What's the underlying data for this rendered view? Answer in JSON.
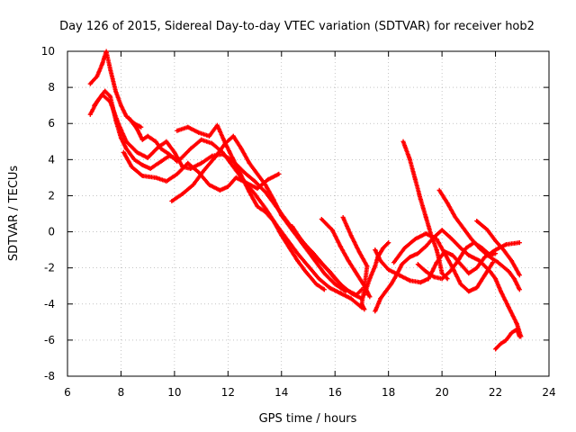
{
  "chart_data": {
    "type": "scatter",
    "title": "Day 126 of 2015, Sidereal Day-to-day VTEC variation (SDTVAR) for receiver hob2",
    "xlabel": "GPS time / hours",
    "ylabel": "SDTVAR / TECUs",
    "xlim": [
      6,
      24
    ],
    "ylim": [
      -8,
      10
    ],
    "xticks": [
      "6",
      "8",
      "10",
      "12",
      "14",
      "16",
      "18",
      "20",
      "22",
      "24"
    ],
    "yticks": [
      "10",
      "8",
      "6",
      "4",
      "2",
      "0",
      "-2",
      "-4",
      "-6",
      "-8"
    ],
    "grid": true,
    "marker": "+",
    "color": "#ff0000",
    "series": [
      {
        "name": "trace-a",
        "points": [
          [
            6.85,
            8.2
          ],
          [
            7.1,
            8.6
          ],
          [
            7.3,
            9.3
          ],
          [
            7.45,
            10.0
          ],
          [
            7.6,
            9.0
          ],
          [
            7.8,
            7.8
          ],
          [
            8.0,
            7.0
          ],
          [
            8.2,
            6.4
          ],
          [
            8.5,
            6.0
          ],
          [
            8.75,
            5.8
          ]
        ]
      },
      {
        "name": "trace-b",
        "points": [
          [
            6.85,
            6.5
          ],
          [
            7.1,
            7.2
          ],
          [
            7.4,
            7.8
          ],
          [
            7.6,
            7.5
          ],
          [
            7.8,
            6.2
          ],
          [
            8.0,
            5.2
          ],
          [
            8.2,
            4.6
          ],
          [
            8.5,
            4.0
          ],
          [
            8.8,
            3.7
          ],
          [
            9.1,
            3.5
          ],
          [
            9.5,
            3.9
          ],
          [
            9.8,
            4.2
          ],
          [
            10.2,
            4.0
          ],
          [
            10.6,
            4.6
          ],
          [
            11.0,
            5.1
          ],
          [
            11.4,
            4.9
          ],
          [
            11.8,
            4.4
          ],
          [
            12.2,
            3.6
          ],
          [
            12.6,
            2.8
          ],
          [
            13.0,
            2.1
          ],
          [
            13.4,
            1.3
          ],
          [
            13.8,
            0.4
          ],
          [
            14.2,
            -0.4
          ],
          [
            14.6,
            -1.2
          ],
          [
            15.0,
            -1.9
          ],
          [
            15.4,
            -2.6
          ],
          [
            15.8,
            -3.1
          ],
          [
            16.2,
            -3.4
          ],
          [
            16.6,
            -3.7
          ],
          [
            17.0,
            -4.2
          ]
        ]
      },
      {
        "name": "trace-c",
        "points": [
          [
            7.0,
            7.0
          ],
          [
            7.3,
            7.6
          ],
          [
            7.6,
            7.2
          ],
          [
            7.9,
            6.0
          ],
          [
            8.2,
            5.0
          ],
          [
            8.6,
            4.4
          ],
          [
            9.0,
            4.1
          ],
          [
            9.4,
            4.7
          ],
          [
            9.7,
            5.0
          ],
          [
            10.0,
            4.4
          ],
          [
            10.3,
            3.6
          ],
          [
            10.6,
            3.5
          ],
          [
            11.0,
            3.8
          ],
          [
            11.4,
            4.2
          ],
          [
            11.8,
            4.3
          ],
          [
            12.2,
            3.9
          ],
          [
            12.6,
            3.3
          ],
          [
            13.0,
            2.8
          ],
          [
            13.4,
            2.2
          ],
          [
            13.8,
            1.4
          ],
          [
            14.2,
            0.6
          ],
          [
            14.6,
            -0.2
          ],
          [
            15.0,
            -0.9
          ],
          [
            15.4,
            -1.6
          ],
          [
            15.8,
            -2.2
          ],
          [
            16.2,
            -2.9
          ],
          [
            16.6,
            -3.4
          ],
          [
            17.0,
            -3.7
          ]
        ]
      },
      {
        "name": "trace-d",
        "points": [
          [
            8.1,
            4.4
          ],
          [
            8.4,
            3.6
          ],
          [
            8.8,
            3.1
          ],
          [
            9.3,
            3.0
          ],
          [
            9.7,
            2.8
          ],
          [
            10.1,
            3.2
          ],
          [
            10.5,
            3.8
          ],
          [
            10.9,
            3.3
          ],
          [
            11.3,
            2.6
          ],
          [
            11.7,
            2.3
          ],
          [
            12.0,
            2.5
          ],
          [
            12.3,
            3.0
          ],
          [
            12.7,
            2.7
          ],
          [
            13.1,
            2.4
          ],
          [
            13.5,
            2.9
          ],
          [
            13.9,
            3.2
          ]
        ]
      },
      {
        "name": "trace-e",
        "points": [
          [
            9.9,
            1.7
          ],
          [
            10.3,
            2.1
          ],
          [
            10.7,
            2.6
          ],
          [
            11.1,
            3.4
          ],
          [
            11.5,
            4.1
          ],
          [
            11.9,
            4.9
          ],
          [
            12.2,
            5.3
          ],
          [
            12.5,
            4.6
          ],
          [
            12.8,
            3.8
          ],
          [
            13.1,
            3.2
          ],
          [
            13.4,
            2.6
          ],
          [
            13.7,
            1.8
          ],
          [
            14.0,
            0.9
          ],
          [
            14.4,
            0.1
          ],
          [
            14.8,
            -0.7
          ],
          [
            15.2,
            -1.5
          ],
          [
            15.6,
            -2.3
          ],
          [
            16.0,
            -2.9
          ],
          [
            16.4,
            -3.3
          ]
        ]
      },
      {
        "name": "trace-f",
        "points": [
          [
            10.1,
            5.6
          ],
          [
            10.5,
            5.8
          ],
          [
            10.9,
            5.5
          ],
          [
            11.3,
            5.3
          ],
          [
            11.6,
            5.9
          ],
          [
            11.9,
            4.9
          ],
          [
            12.2,
            4.0
          ],
          [
            12.5,
            3.1
          ],
          [
            12.8,
            2.2
          ],
          [
            13.1,
            1.4
          ],
          [
            13.4,
            1.1
          ],
          [
            13.7,
            0.6
          ],
          [
            14.0,
            -0.2
          ],
          [
            14.3,
            -0.9
          ],
          [
            14.6,
            -1.6
          ],
          [
            14.9,
            -2.2
          ],
          [
            15.3,
            -2.9
          ],
          [
            15.6,
            -3.2
          ]
        ]
      },
      {
        "name": "trace-g",
        "points": [
          [
            8.3,
            6.3
          ],
          [
            8.6,
            5.7
          ],
          [
            8.8,
            5.1
          ],
          [
            9.0,
            5.3
          ],
          [
            9.3,
            5.0
          ],
          [
            9.5,
            4.6
          ],
          [
            9.8,
            4.3
          ],
          [
            10.1,
            3.9
          ]
        ]
      },
      {
        "name": "trace-h",
        "points": [
          [
            14.4,
            0.3
          ],
          [
            14.8,
            -0.6
          ],
          [
            15.2,
            -1.2
          ],
          [
            15.6,
            -1.9
          ],
          [
            16.0,
            -2.6
          ],
          [
            16.4,
            -3.2
          ],
          [
            16.8,
            -3.5
          ],
          [
            17.0,
            -3.2
          ]
        ]
      },
      {
        "name": "trace-i",
        "points": [
          [
            15.5,
            0.7
          ],
          [
            15.9,
            0.1
          ],
          [
            16.2,
            -0.8
          ],
          [
            16.5,
            -1.6
          ],
          [
            16.8,
            -2.3
          ],
          [
            17.1,
            -3.0
          ],
          [
            17.3,
            -3.6
          ]
        ]
      },
      {
        "name": "trace-j",
        "points": [
          [
            16.3,
            0.8
          ],
          [
            16.6,
            -0.2
          ],
          [
            16.9,
            -1.1
          ],
          [
            17.2,
            -1.9
          ],
          [
            17.1,
            -3.1
          ],
          [
            17.0,
            -4.0
          ],
          [
            17.1,
            -4.3
          ]
        ]
      },
      {
        "name": "trace-k",
        "points": [
          [
            17.5,
            -4.4
          ],
          [
            17.7,
            -3.7
          ],
          [
            17.9,
            -3.3
          ],
          [
            18.1,
            -2.9
          ],
          [
            18.3,
            -2.4
          ],
          [
            18.5,
            -1.8
          ],
          [
            18.8,
            -1.4
          ],
          [
            19.1,
            -1.2
          ],
          [
            19.4,
            -0.8
          ],
          [
            19.7,
            -0.3
          ],
          [
            20.0,
            0.1
          ],
          [
            20.3,
            -0.3
          ],
          [
            20.7,
            -0.9
          ],
          [
            21.0,
            -1.3
          ],
          [
            21.4,
            -1.6
          ],
          [
            21.8,
            -2.2
          ],
          [
            22.0,
            -2.6
          ],
          [
            22.2,
            -3.3
          ],
          [
            22.5,
            -4.2
          ],
          [
            22.8,
            -5.1
          ],
          [
            22.95,
            -5.8
          ]
        ]
      },
      {
        "name": "trace-l",
        "points": [
          [
            17.5,
            -1.0
          ],
          [
            17.7,
            -1.6
          ],
          [
            18.0,
            -2.1
          ],
          [
            18.4,
            -2.4
          ],
          [
            18.8,
            -2.7
          ],
          [
            19.2,
            -2.8
          ],
          [
            19.5,
            -2.6
          ],
          [
            19.8,
            -1.7
          ],
          [
            20.1,
            -1.1
          ],
          [
            20.4,
            -1.3
          ],
          [
            20.7,
            -1.8
          ],
          [
            21.0,
            -2.3
          ],
          [
            21.3,
            -2.0
          ],
          [
            21.6,
            -1.4
          ],
          [
            22.0,
            -1.0
          ],
          [
            22.4,
            -0.7
          ],
          [
            22.9,
            -0.6
          ]
        ]
      },
      {
        "name": "trace-m",
        "points": [
          [
            17.1,
            -3.5
          ],
          [
            17.3,
            -2.6
          ],
          [
            17.5,
            -1.9
          ],
          [
            17.6,
            -1.4
          ],
          [
            17.8,
            -0.9
          ],
          [
            18.0,
            -0.6
          ]
        ]
      },
      {
        "name": "trace-n",
        "points": [
          [
            18.55,
            5.0
          ],
          [
            18.8,
            4.0
          ],
          [
            19.0,
            2.9
          ],
          [
            19.2,
            1.8
          ],
          [
            19.4,
            0.8
          ],
          [
            19.6,
            -0.2
          ],
          [
            19.8,
            -1.0
          ],
          [
            19.9,
            -1.6
          ],
          [
            20.0,
            -2.3
          ],
          [
            20.2,
            -2.6
          ]
        ]
      },
      {
        "name": "trace-o",
        "points": [
          [
            19.9,
            2.3
          ],
          [
            20.2,
            1.6
          ],
          [
            20.5,
            0.8
          ],
          [
            20.8,
            0.2
          ],
          [
            21.1,
            -0.4
          ],
          [
            21.4,
            -0.9
          ],
          [
            21.7,
            -1.3
          ],
          [
            22.1,
            -1.7
          ],
          [
            22.5,
            -2.2
          ],
          [
            22.7,
            -2.6
          ],
          [
            22.9,
            -3.2
          ]
        ]
      },
      {
        "name": "trace-p",
        "points": [
          [
            19.1,
            -1.8
          ],
          [
            19.4,
            -2.2
          ],
          [
            19.7,
            -2.5
          ],
          [
            20.0,
            -2.6
          ],
          [
            20.3,
            -2.2
          ],
          [
            20.6,
            -1.6
          ],
          [
            20.9,
            -0.9
          ],
          [
            21.2,
            -0.6
          ],
          [
            21.5,
            -0.9
          ],
          [
            21.8,
            -1.3
          ],
          [
            22.0,
            -1.2
          ]
        ]
      },
      {
        "name": "trace-q",
        "points": [
          [
            18.2,
            -1.7
          ],
          [
            18.6,
            -0.9
          ],
          [
            19.0,
            -0.4
          ],
          [
            19.4,
            -0.1
          ],
          [
            19.8,
            -0.4
          ],
          [
            20.1,
            -1.2
          ],
          [
            20.4,
            -2.0
          ],
          [
            20.7,
            -2.9
          ],
          [
            21.0,
            -3.3
          ],
          [
            21.3,
            -3.1
          ],
          [
            21.6,
            -2.4
          ],
          [
            21.9,
            -1.7
          ]
        ]
      },
      {
        "name": "trace-r",
        "points": [
          [
            21.3,
            0.6
          ],
          [
            21.7,
            0.1
          ],
          [
            22.0,
            -0.5
          ],
          [
            22.3,
            -1.0
          ],
          [
            22.6,
            -1.6
          ],
          [
            22.9,
            -2.4
          ]
        ]
      },
      {
        "name": "trace-s",
        "points": [
          [
            22.0,
            -6.5
          ],
          [
            22.2,
            -6.2
          ],
          [
            22.4,
            -6.0
          ],
          [
            22.6,
            -5.6
          ],
          [
            22.8,
            -5.4
          ],
          [
            22.9,
            -5.8
          ]
        ]
      }
    ]
  }
}
